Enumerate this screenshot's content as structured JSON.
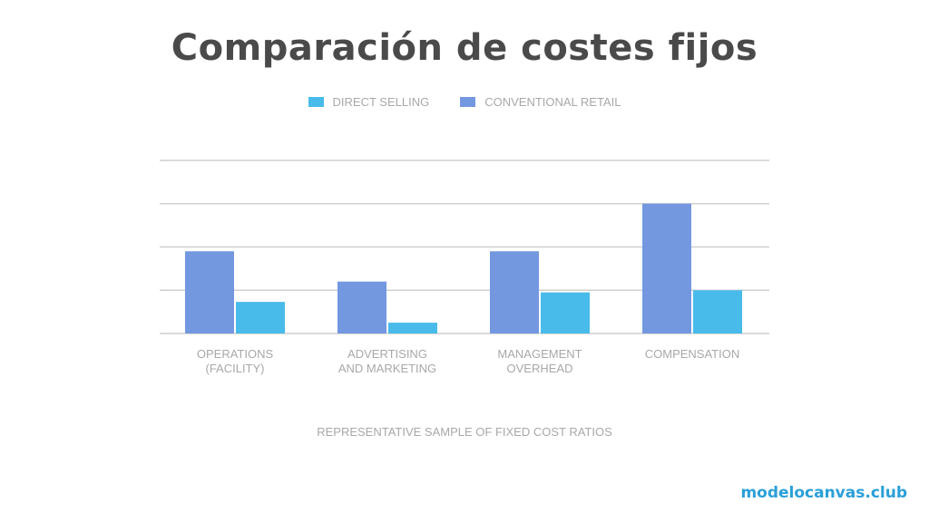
{
  "chart_data": {
    "type": "bar",
    "title": "Comparación de costes fijos",
    "xlabel": "REPRESENTATIVE SAMPLE OF FIXED COST RATIOS",
    "ylabel": "",
    "categories": [
      [
        "OPERATIONS",
        "(FACILITY)"
      ],
      [
        "ADVERTISING",
        "AND MARKETING"
      ],
      [
        "MANAGEMENT",
        "OVERHEAD"
      ],
      [
        "COMPENSATION"
      ]
    ],
    "series": [
      {
        "name": "CONVENTIONAL RETAIL",
        "color": "#7398e0",
        "values": [
          1.9,
          1.2,
          1.9,
          3.0
        ]
      },
      {
        "name": "DIRECT SELLING",
        "color": "#48bbea",
        "values": [
          0.73,
          0.25,
          0.95,
          1.0
        ]
      }
    ],
    "ylim": [
      0,
      4
    ],
    "grid": true,
    "y_tick_labels_shown": false,
    "legend_placement": "top-center",
    "legend_order": [
      1,
      0
    ]
  },
  "brand": "modelocanvas.club"
}
